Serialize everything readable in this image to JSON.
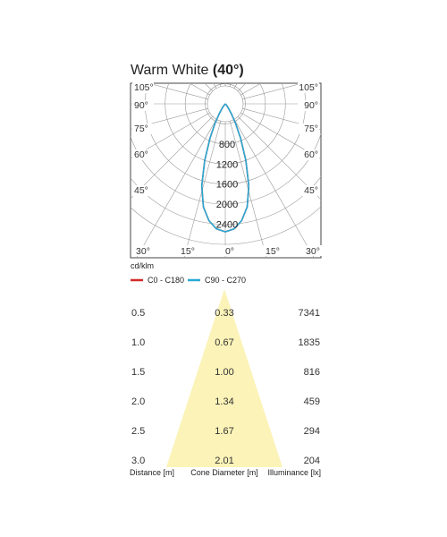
{
  "title": {
    "text": "Warm White",
    "bold": "(40°)"
  },
  "chart_data": [
    {
      "type": "polar",
      "angle_labels_left": [
        "105°",
        "90°",
        "75°",
        "60°",
        "45°"
      ],
      "angle_labels_right": [
        "105°",
        "90°",
        "75°",
        "60°",
        "45°"
      ],
      "bottom_labels": [
        "30°",
        "15°",
        "0°",
        "15°",
        "30°"
      ],
      "radial_ticks": [
        "800",
        "1200",
        "1600",
        "2000",
        "2400"
      ],
      "radial_max": 2800,
      "unit": "cd/klm",
      "series": [
        {
          "name": "C0 - C180",
          "color": "#d22b2b",
          "points": [
            [
              0,
              2550
            ],
            [
              4,
              2500
            ],
            [
              8,
              2350
            ],
            [
              12,
              2100
            ],
            [
              16,
              1700
            ],
            [
              20,
              1200
            ],
            [
              24,
              750
            ],
            [
              28,
              420
            ],
            [
              32,
              220
            ],
            [
              36,
              100
            ],
            [
              40,
              40
            ],
            [
              44,
              0
            ]
          ]
        },
        {
          "name": "C90 - C270",
          "color": "#29a9d4",
          "points": [
            [
              0,
              2550
            ],
            [
              4,
              2500
            ],
            [
              8,
              2350
            ],
            [
              12,
              2100
            ],
            [
              16,
              1700
            ],
            [
              20,
              1200
            ],
            [
              24,
              750
            ],
            [
              28,
              420
            ],
            [
              32,
              220
            ],
            [
              36,
              100
            ],
            [
              40,
              40
            ],
            [
              44,
              0
            ]
          ]
        }
      ]
    },
    {
      "type": "table",
      "headers": [
        "Distance [m]",
        "Cone Diameter [m]",
        "Illuminance [lx]"
      ],
      "rows": [
        [
          "0.5",
          "0.33",
          "7341"
        ],
        [
          "1.0",
          "0.67",
          "1835"
        ],
        [
          "1.5",
          "1.00",
          "816"
        ],
        [
          "2.0",
          "1.34",
          "459"
        ],
        [
          "2.5",
          "1.67",
          "294"
        ],
        [
          "3.0",
          "2.01",
          "204"
        ]
      ],
      "cone_color": "#fbf3b8"
    }
  ]
}
